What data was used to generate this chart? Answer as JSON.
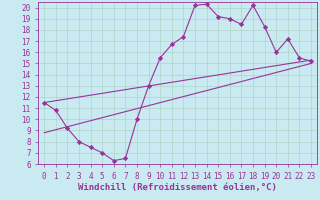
{
  "background_color": "#c8eaf0",
  "grid_color": "#b0d4c8",
  "line_color": "#993399",
  "xlabel": "Windchill (Refroidissement éolien,°C)",
  "xlim": [
    -0.5,
    23.5
  ],
  "ylim": [
    6,
    20.5
  ],
  "xticks": [
    0,
    1,
    2,
    3,
    4,
    5,
    6,
    7,
    8,
    9,
    10,
    11,
    12,
    13,
    14,
    15,
    16,
    17,
    18,
    19,
    20,
    21,
    22,
    23
  ],
  "yticks": [
    6,
    7,
    8,
    9,
    10,
    11,
    12,
    13,
    14,
    15,
    16,
    17,
    18,
    19,
    20
  ],
  "series1_x": [
    0,
    1,
    2,
    3,
    4,
    5,
    6,
    7,
    8,
    9,
    10,
    11,
    12,
    13,
    14,
    15,
    16,
    17,
    18,
    19,
    20,
    21,
    22,
    23
  ],
  "series1_y": [
    11.5,
    10.8,
    9.2,
    8.0,
    7.5,
    7.0,
    6.3,
    6.5,
    10.0,
    13.0,
    15.5,
    16.7,
    17.4,
    20.2,
    20.3,
    19.2,
    19.0,
    18.5,
    20.2,
    18.3,
    16.0,
    17.2,
    15.5,
    15.2
  ],
  "series2_x": [
    0,
    23
  ],
  "series2_y": [
    11.5,
    15.3
  ],
  "series3_x": [
    0,
    23
  ],
  "series3_y": [
    8.8,
    15.0
  ],
  "tick_fontsize": 5.5,
  "label_fontsize": 6.5
}
